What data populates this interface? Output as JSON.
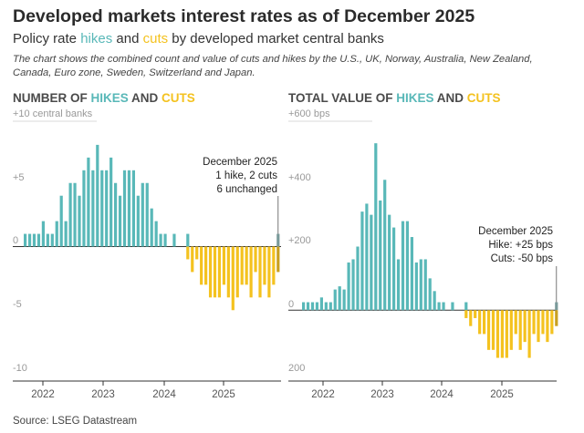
{
  "title": "Developed markets interest rates as of December 2025",
  "subtitle": {
    "part1": "Policy rate ",
    "hikes": "hikes",
    "part2": " and ",
    "cuts": "cuts",
    "part3": " by developed market central banks"
  },
  "description": "The chart shows the combined count and value of cuts and hikes by the U.S., UK, Norway, Australia, New Zealand, Canada, Euro zone, Sweden, Switzerland and Japan.",
  "source": "Source: LSEG Datastream",
  "colors": {
    "hike": "#59b8b8",
    "cut": "#f4c21f",
    "latest": "#7a9a9a",
    "axis": "#333333",
    "grid": "#cccccc"
  },
  "chart_data": [
    {
      "type": "bar",
      "title_parts": [
        "NUMBER OF ",
        "HIKES",
        " AND ",
        "CUTS"
      ],
      "x_ticks": [
        "2022",
        "2023",
        "2024",
        "2025"
      ],
      "y_ticks": [
        "+10 central banks",
        "+5",
        "0",
        "-5",
        "-10"
      ],
      "ylim": [
        -10,
        10
      ],
      "annotation": [
        "December 2025",
        "1 hike, 2 cuts",
        "6 unchanged"
      ],
      "series": [
        {
          "name": "hikes",
          "values": [
            1,
            1,
            1,
            1,
            2,
            1,
            1,
            2,
            4,
            2,
            5,
            5,
            4,
            6,
            7,
            6,
            8,
            6,
            6,
            7,
            5,
            4,
            6,
            6,
            6,
            4,
            5,
            5,
            3,
            2,
            1,
            1,
            0,
            1,
            0,
            0,
            1,
            0,
            0,
            0,
            0,
            0,
            0,
            0,
            0,
            0,
            0,
            0,
            0,
            0,
            0,
            0,
            0,
            0,
            0,
            0,
            1
          ]
        },
        {
          "name": "cuts",
          "values": [
            0,
            0,
            0,
            0,
            0,
            0,
            0,
            0,
            0,
            0,
            0,
            0,
            0,
            0,
            0,
            0,
            0,
            0,
            0,
            0,
            0,
            0,
            0,
            0,
            0,
            0,
            0,
            0,
            0,
            0,
            0,
            0,
            0,
            0,
            0,
            0,
            -1,
            -2,
            -1,
            -3,
            -3,
            -4,
            -4,
            -4,
            -3,
            -4,
            -5,
            -4,
            -3,
            -3,
            -4,
            -2,
            -4,
            -3,
            -4,
            -3,
            -2
          ]
        }
      ]
    },
    {
      "type": "bar",
      "title_parts": [
        "TOTAL VALUE OF ",
        "HIKES",
        " AND ",
        "CUTS"
      ],
      "x_ticks": [
        "2022",
        "2023",
        "2024",
        "2025"
      ],
      "y_ticks": [
        "+600 bps",
        "+400",
        "+200",
        "0",
        "200"
      ],
      "ylim": [
        -200,
        600
      ],
      "annotation": [
        "December 2025",
        "Hike: +25 bps",
        "Cuts: -50 bps"
      ],
      "series": [
        {
          "name": "hikes",
          "values": [
            25,
            25,
            25,
            25,
            40,
            25,
            25,
            65,
            75,
            65,
            150,
            160,
            200,
            310,
            335,
            300,
            525,
            345,
            410,
            300,
            260,
            160,
            280,
            280,
            230,
            150,
            160,
            160,
            100,
            60,
            25,
            25,
            0,
            25,
            0,
            0,
            25,
            0,
            0,
            0,
            0,
            0,
            0,
            0,
            0,
            0,
            0,
            0,
            0,
            0,
            0,
            0,
            0,
            0,
            0,
            0,
            25
          ]
        },
        {
          "name": "cuts",
          "values": [
            0,
            0,
            0,
            0,
            0,
            0,
            0,
            0,
            0,
            0,
            0,
            0,
            0,
            0,
            0,
            0,
            0,
            0,
            0,
            0,
            0,
            0,
            0,
            0,
            0,
            0,
            0,
            0,
            0,
            0,
            0,
            0,
            0,
            0,
            0,
            0,
            -25,
            -50,
            -25,
            -75,
            -75,
            -125,
            -125,
            -150,
            -150,
            -150,
            -125,
            -75,
            -125,
            -100,
            -150,
            -75,
            -100,
            -75,
            -100,
            -75,
            -50
          ]
        }
      ]
    }
  ]
}
